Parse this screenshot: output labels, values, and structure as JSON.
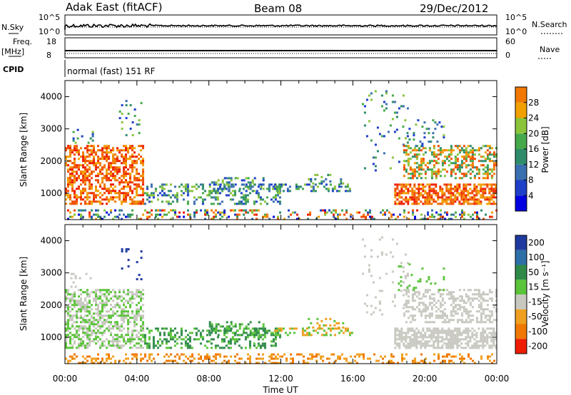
{
  "header": {
    "station": "Adak East (fitACF)",
    "beam": "Beam 08",
    "date": "29/Dec/2012"
  },
  "strips": {
    "nsky_label": "N.Sky",
    "nsky_ticks": [
      "10^5",
      "10^0"
    ],
    "nsearch_label": "N.Search",
    "nsearch_ticks": [
      "10^5",
      "10^0"
    ],
    "freq_label_1": "Freq.",
    "freq_label_2": "[MHz]",
    "freq_ticks": [
      "18",
      "8"
    ],
    "nave_label": "Nave",
    "nave_ticks": [
      "60",
      "0"
    ],
    "cpid_label": "CPID",
    "cpid_text": "normal (fast) 151 RF"
  },
  "chart_data": [
    {
      "type": "heatmap",
      "name": "power",
      "ylabel": "Slant Range [km]",
      "xlabel": "",
      "x_ticks": [
        "00:00",
        "04:00",
        "08:00",
        "12:00",
        "16:00",
        "20:00",
        "00:00"
      ],
      "xlim_hours": [
        0,
        24
      ],
      "ylim_km": [
        180,
        4500
      ],
      "y_ticks": [
        1000,
        2000,
        3000,
        4000
      ],
      "colorbar": {
        "label": "Power [dB]",
        "ticks": [
          4,
          8,
          12,
          16,
          20,
          24,
          28
        ],
        "range": [
          0,
          32
        ],
        "colors": [
          "#0000e0",
          "#1e3fc8",
          "#3a6fb0",
          "#2e8c6a",
          "#45a84a",
          "#8ac43a",
          "#f2a000",
          "#f07800",
          "#f04a00",
          "#ee1c00"
        ]
      }
    },
    {
      "type": "heatmap",
      "name": "velocity",
      "ylabel": "Slant Range [km]",
      "xlabel": "Time UT",
      "x_ticks": [
        "00:00",
        "04:00",
        "08:00",
        "12:00",
        "16:00",
        "20:00",
        "00:00"
      ],
      "xlim_hours": [
        0,
        24
      ],
      "ylim_km": [
        180,
        4500
      ],
      "y_ticks": [
        1000,
        2000,
        3000,
        4000
      ],
      "colorbar": {
        "label": "Velocity [m s⁻¹]",
        "ticks": [
          "200",
          "100",
          "50",
          "15",
          "-15",
          "-50",
          "-100",
          "-200"
        ],
        "colors": [
          "#1f3a9e",
          "#2e6fa8",
          "#2f8a4a",
          "#5bc43a",
          "#c8c8c0",
          "#f0a020",
          "#f07800",
          "#ee1c00"
        ]
      }
    }
  ]
}
